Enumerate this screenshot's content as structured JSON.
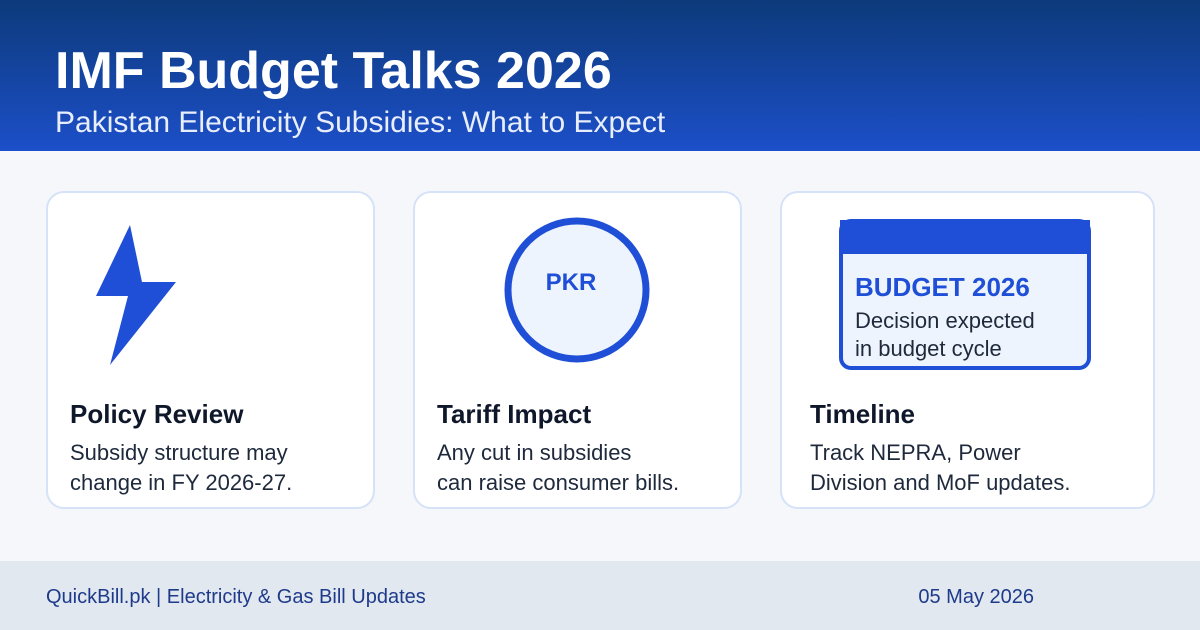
{
  "header": {
    "title": "IMF Budget Talks 2026",
    "subtitle": "Pakistan Electricity Subsidies: What to Expect"
  },
  "cards": [
    {
      "icon_text": null,
      "title": "Policy Review",
      "lines": [
        "Subsidy structure may",
        "change in FY 2026-27."
      ]
    },
    {
      "icon_text": "PKR",
      "title": "Tariff Impact",
      "lines": [
        "Any cut in subsidies",
        "can raise consumer bills."
      ]
    },
    {
      "icon_text": "BUDGET 2026",
      "icon_lines": [
        "Decision expected",
        "in budget cycle"
      ],
      "title": "Timeline",
      "lines": [
        "Track NEPRA, Power",
        "Division and MoF updates."
      ]
    }
  ],
  "footer": {
    "source": "QuickBill.pk | Electricity & Gas Bill Updates",
    "date": "05 May 2026"
  }
}
